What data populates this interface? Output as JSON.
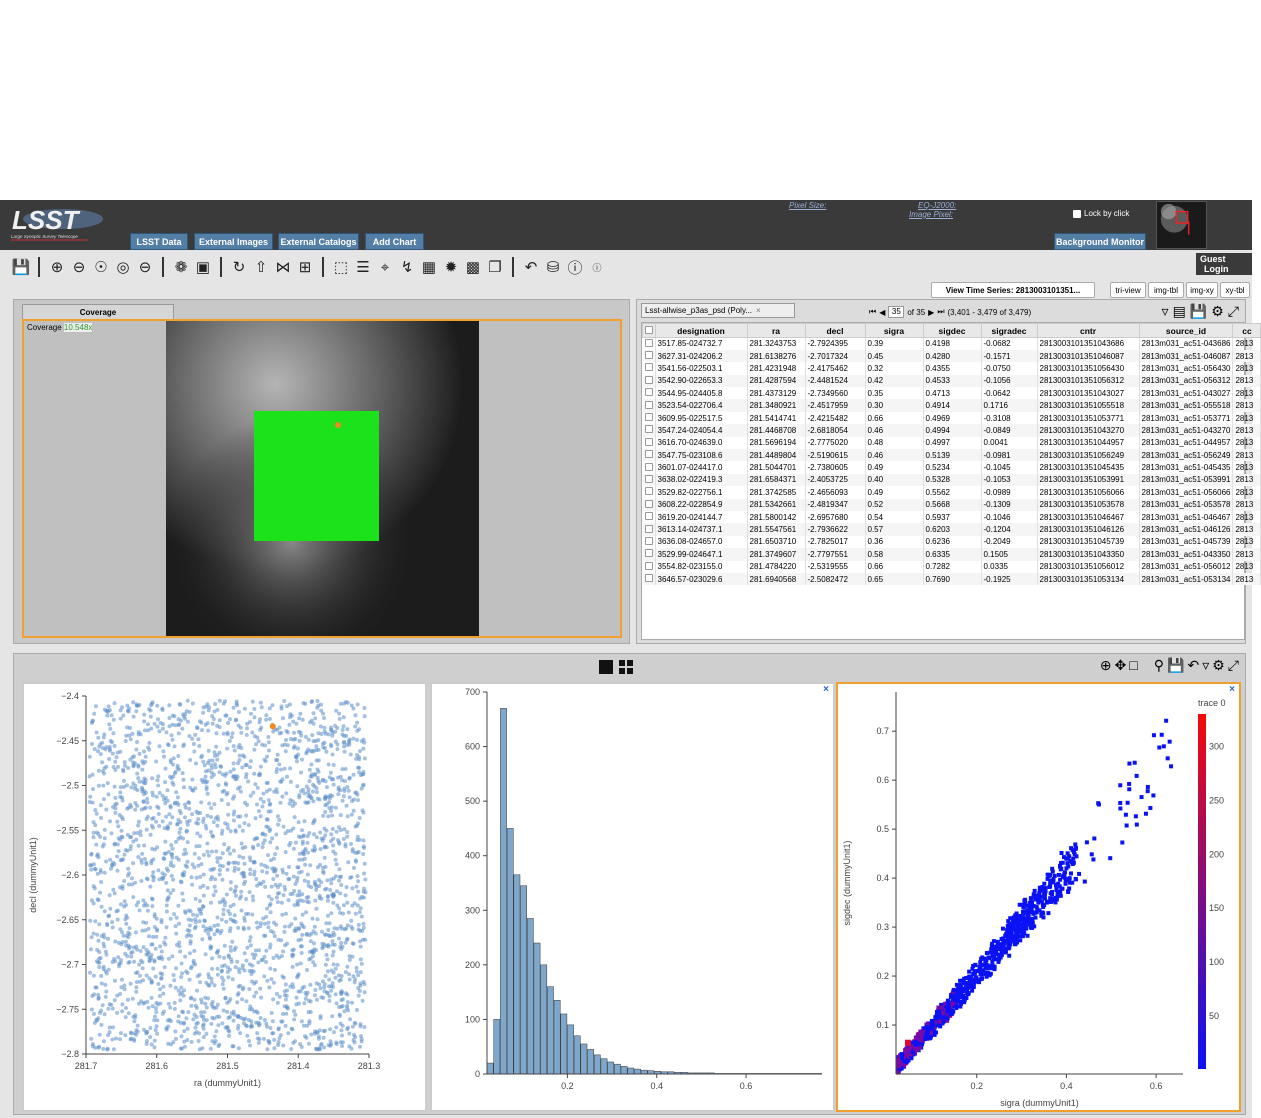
{
  "banner": {
    "buttons": [
      "LSST Data",
      "External Images",
      "External Catalogs",
      "Add Chart"
    ],
    "pixel_size_label": "Pixel Size:",
    "eq_label": "EQ-J2000:",
    "image_pixel_label": "Image Pixel:",
    "lock_label": "Lock by click",
    "bg_monitor": "Background Monitor",
    "guest": "Guest",
    "login": "Login",
    "logo_caption": "Large Synoptic Survey Telescope"
  },
  "toolbar": {
    "view_time_series": "View Time Series: 2813003101351...",
    "view_buttons": [
      "tri-view",
      "img-tbl",
      "img-xy",
      "xy-tbl"
    ]
  },
  "image": {
    "tab": "Coverage",
    "label": "Coverage",
    "zoom": "10.548x"
  },
  "table": {
    "tab": "Lsst-allwise_p3as_psd (Poly...",
    "page": "35",
    "of_pages": "of 35",
    "range": "(3,401 - 3,479 of 3,479)",
    "columns": [
      "designation",
      "ra",
      "decl",
      "sigra",
      "sigdec",
      "sigradec",
      "cntr",
      "source_id",
      "cc"
    ],
    "rows": [
      [
        "3517.85-024732.7",
        "281.3243753",
        "-2.7924395",
        "0.39",
        "0.4198",
        "-0.0682",
        "2813003101351043686",
        "2813m031_ac51-043686",
        "2813"
      ],
      [
        "3627.31-024206.2",
        "281.6138276",
        "-2.7017324",
        "0.45",
        "0.4280",
        "-0.1571",
        "2813003101351046087",
        "2813m031_ac51-046087",
        "2813"
      ],
      [
        "3541.56-022503.1",
        "281.4231948",
        "-2.4175462",
        "0.32",
        "0.4355",
        "-0.0750",
        "2813003101351056430",
        "2813m031_ac51-056430",
        "2813"
      ],
      [
        "3542.90-022653.3",
        "281.4287594",
        "-2.4481524",
        "0.42",
        "0.4533",
        "-0.1056",
        "2813003101351056312",
        "2813m031_ac51-056312",
        "2813"
      ],
      [
        "3544.95-024405.8",
        "281.4373129",
        "-2.7349560",
        "0.35",
        "0.4713",
        "-0.0642",
        "2813003101351043027",
        "2813m031_ac51-043027",
        "2813"
      ],
      [
        "3523.54-022706.4",
        "281.3480921",
        "-2.4517959",
        "0.30",
        "0.4914",
        "0.1716",
        "2813003101351055518",
        "2813m031_ac51-055518",
        "2813"
      ],
      [
        "3609.95-022517.5",
        "281.5414741",
        "-2.4215482",
        "0.66",
        "0.4969",
        "-0.3108",
        "2813003101351053771",
        "2813m031_ac51-053771",
        "2813"
      ],
      [
        "3547.24-024054.4",
        "281.4468708",
        "-2.6818054",
        "0.46",
        "0.4994",
        "-0.0849",
        "2813003101351043270",
        "2813m031_ac51-043270",
        "2813"
      ],
      [
        "3616.70-024639.0",
        "281.5696194",
        "-2.7775020",
        "0.48",
        "0.4997",
        "0.0041",
        "2813003101351044957",
        "2813m031_ac51-044957",
        "2813"
      ],
      [
        "3547.75-023108.6",
        "281.4489804",
        "-2.5190615",
        "0.46",
        "0.5139",
        "-0.0981",
        "2813003101351056249",
        "2813m031_ac51-056249",
        "2813"
      ],
      [
        "3601.07-024417.0",
        "281.5044701",
        "-2.7380605",
        "0.49",
        "0.5234",
        "-0.1045",
        "2813003101351045435",
        "2813m031_ac51-045435",
        "2813"
      ],
      [
        "3638.02-022419.3",
        "281.6584371",
        "-2.4053725",
        "0.40",
        "0.5328",
        "-0.1053",
        "2813003101351053991",
        "2813m031_ac51-053991",
        "2813"
      ],
      [
        "3529.82-022756.1",
        "281.3742585",
        "-2.4656093",
        "0.49",
        "0.5562",
        "-0.0989",
        "2813003101351056066",
        "2813m031_ac51-056066",
        "2813"
      ],
      [
        "3608.22-022854.9",
        "281.5342661",
        "-2.4819347",
        "0.52",
        "0.5668",
        "-0.1309",
        "2813003101351053578",
        "2813m031_ac51-053578",
        "2813"
      ],
      [
        "3619.20-024144.7",
        "281.5800142",
        "-2.6957680",
        "0.54",
        "0.5937",
        "-0.1046",
        "2813003101351046467",
        "2813m031_ac51-046467",
        "2813"
      ],
      [
        "3613.14-024737.1",
        "281.5547561",
        "-2.7936622",
        "0.57",
        "0.6203",
        "-0.1204",
        "2813003101351046126",
        "2813m031_ac51-046126",
        "2813"
      ],
      [
        "3636.08-024657.0",
        "281.6503710",
        "-2.7825017",
        "0.36",
        "0.6236",
        "-0.2049",
        "2813003101351045739",
        "2813m031_ac51-045739",
        "2813"
      ],
      [
        "3529.99-024647.1",
        "281.3749607",
        "-2.7797551",
        "0.58",
        "0.6335",
        "0.1505",
        "2813003101351043350",
        "2813m031_ac51-043350",
        "2813"
      ],
      [
        "3554.82-023155.0",
        "281.4784220",
        "-2.5319555",
        "0.66",
        "0.7282",
        "0.0335",
        "2813003101351056012",
        "2813m031_ac51-056012",
        "2813"
      ],
      [
        "3646.57-023029.6",
        "281.6940568",
        "-2.5082472",
        "0.65",
        "0.7690",
        "-0.1925",
        "2813003101351053134",
        "2813m031_ac51-053134",
        "2813"
      ]
    ]
  },
  "chart_data": [
    {
      "type": "scatter",
      "title": "",
      "xlabel": "ra (dummyUnit1)",
      "ylabel": "decl (dummyUnit1)",
      "xlim": [
        281.3,
        281.7
      ],
      "ylim": [
        -2.8,
        -2.4
      ],
      "x_reversed": true,
      "xticks": [
        281.7,
        281.6,
        281.5,
        281.4,
        281.3
      ],
      "yticks": [
        -2.4,
        -2.45,
        -2.5,
        -2.55,
        -2.6,
        -2.65,
        -2.7,
        -2.75,
        -2.8
      ],
      "xtick_labels": [
        "281.7",
        "281.6",
        "281.5",
        "281.4",
        "281.3"
      ],
      "ytick_labels": [
        "−2.4",
        "−2.45",
        "−2.5",
        "−2.55",
        "−2.6",
        "−2.65",
        "−2.7",
        "−2.75",
        "−2.8"
      ],
      "point_count": 3479,
      "highlight": {
        "x": 281.436,
        "y": -2.434
      },
      "color": "#5b8ec9",
      "highlight_color": "#f08a1c"
    },
    {
      "type": "bar",
      "title": "",
      "xlabel": "",
      "ylabel": "",
      "xlim": [
        0.02,
        0.77
      ],
      "ylim": [
        0,
        700
      ],
      "xticks": [
        0.2,
        0.4,
        0.6
      ],
      "yticks": [
        0,
        100,
        200,
        300,
        400,
        500,
        600,
        700
      ],
      "xtick_labels": [
        "0.2",
        "0.4",
        "0.6"
      ],
      "ytick_labels": [
        "0",
        "100",
        "200",
        "300",
        "400",
        "500",
        "600",
        "700"
      ],
      "bin_start": 0.02,
      "bin_width": 0.015,
      "values": [
        20,
        100,
        670,
        450,
        365,
        345,
        285,
        240,
        200,
        160,
        135,
        110,
        90,
        70,
        55,
        45,
        35,
        28,
        22,
        18,
        14,
        11,
        9,
        7,
        6,
        5,
        4,
        4,
        3,
        3,
        2,
        2,
        2,
        2,
        1,
        1,
        1,
        1,
        1,
        1,
        1,
        1,
        1,
        1,
        1,
        1,
        1,
        1,
        1,
        1
      ],
      "color": "#7fa7cc"
    },
    {
      "type": "heatmap",
      "title": "",
      "xlabel": "sigra (dummyUnit1)",
      "ylabel": "sigdec (dummyUnit1)",
      "xlim": [
        0.02,
        0.66
      ],
      "ylim": [
        0.0,
        0.78
      ],
      "xticks": [
        0.2,
        0.4,
        0.6
      ],
      "yticks": [
        0.1,
        0.2,
        0.3,
        0.4,
        0.5,
        0.6,
        0.7
      ],
      "xtick_labels": [
        "0.2",
        "0.4",
        "0.6"
      ],
      "ytick_labels": [
        "0.1",
        "0.2",
        "0.3",
        "0.4",
        "0.5",
        "0.6",
        "0.7"
      ],
      "colorbar_title": "trace 0",
      "colorbar_ticks": [
        50,
        100,
        150,
        200,
        250,
        300
      ],
      "colorbar_tick_labels": [
        "50",
        "100",
        "150",
        "200",
        "250",
        "300"
      ],
      "colorbar_range": [
        1,
        330
      ],
      "color_low": "#0a12f5",
      "color_high": "#f50a0a"
    }
  ]
}
